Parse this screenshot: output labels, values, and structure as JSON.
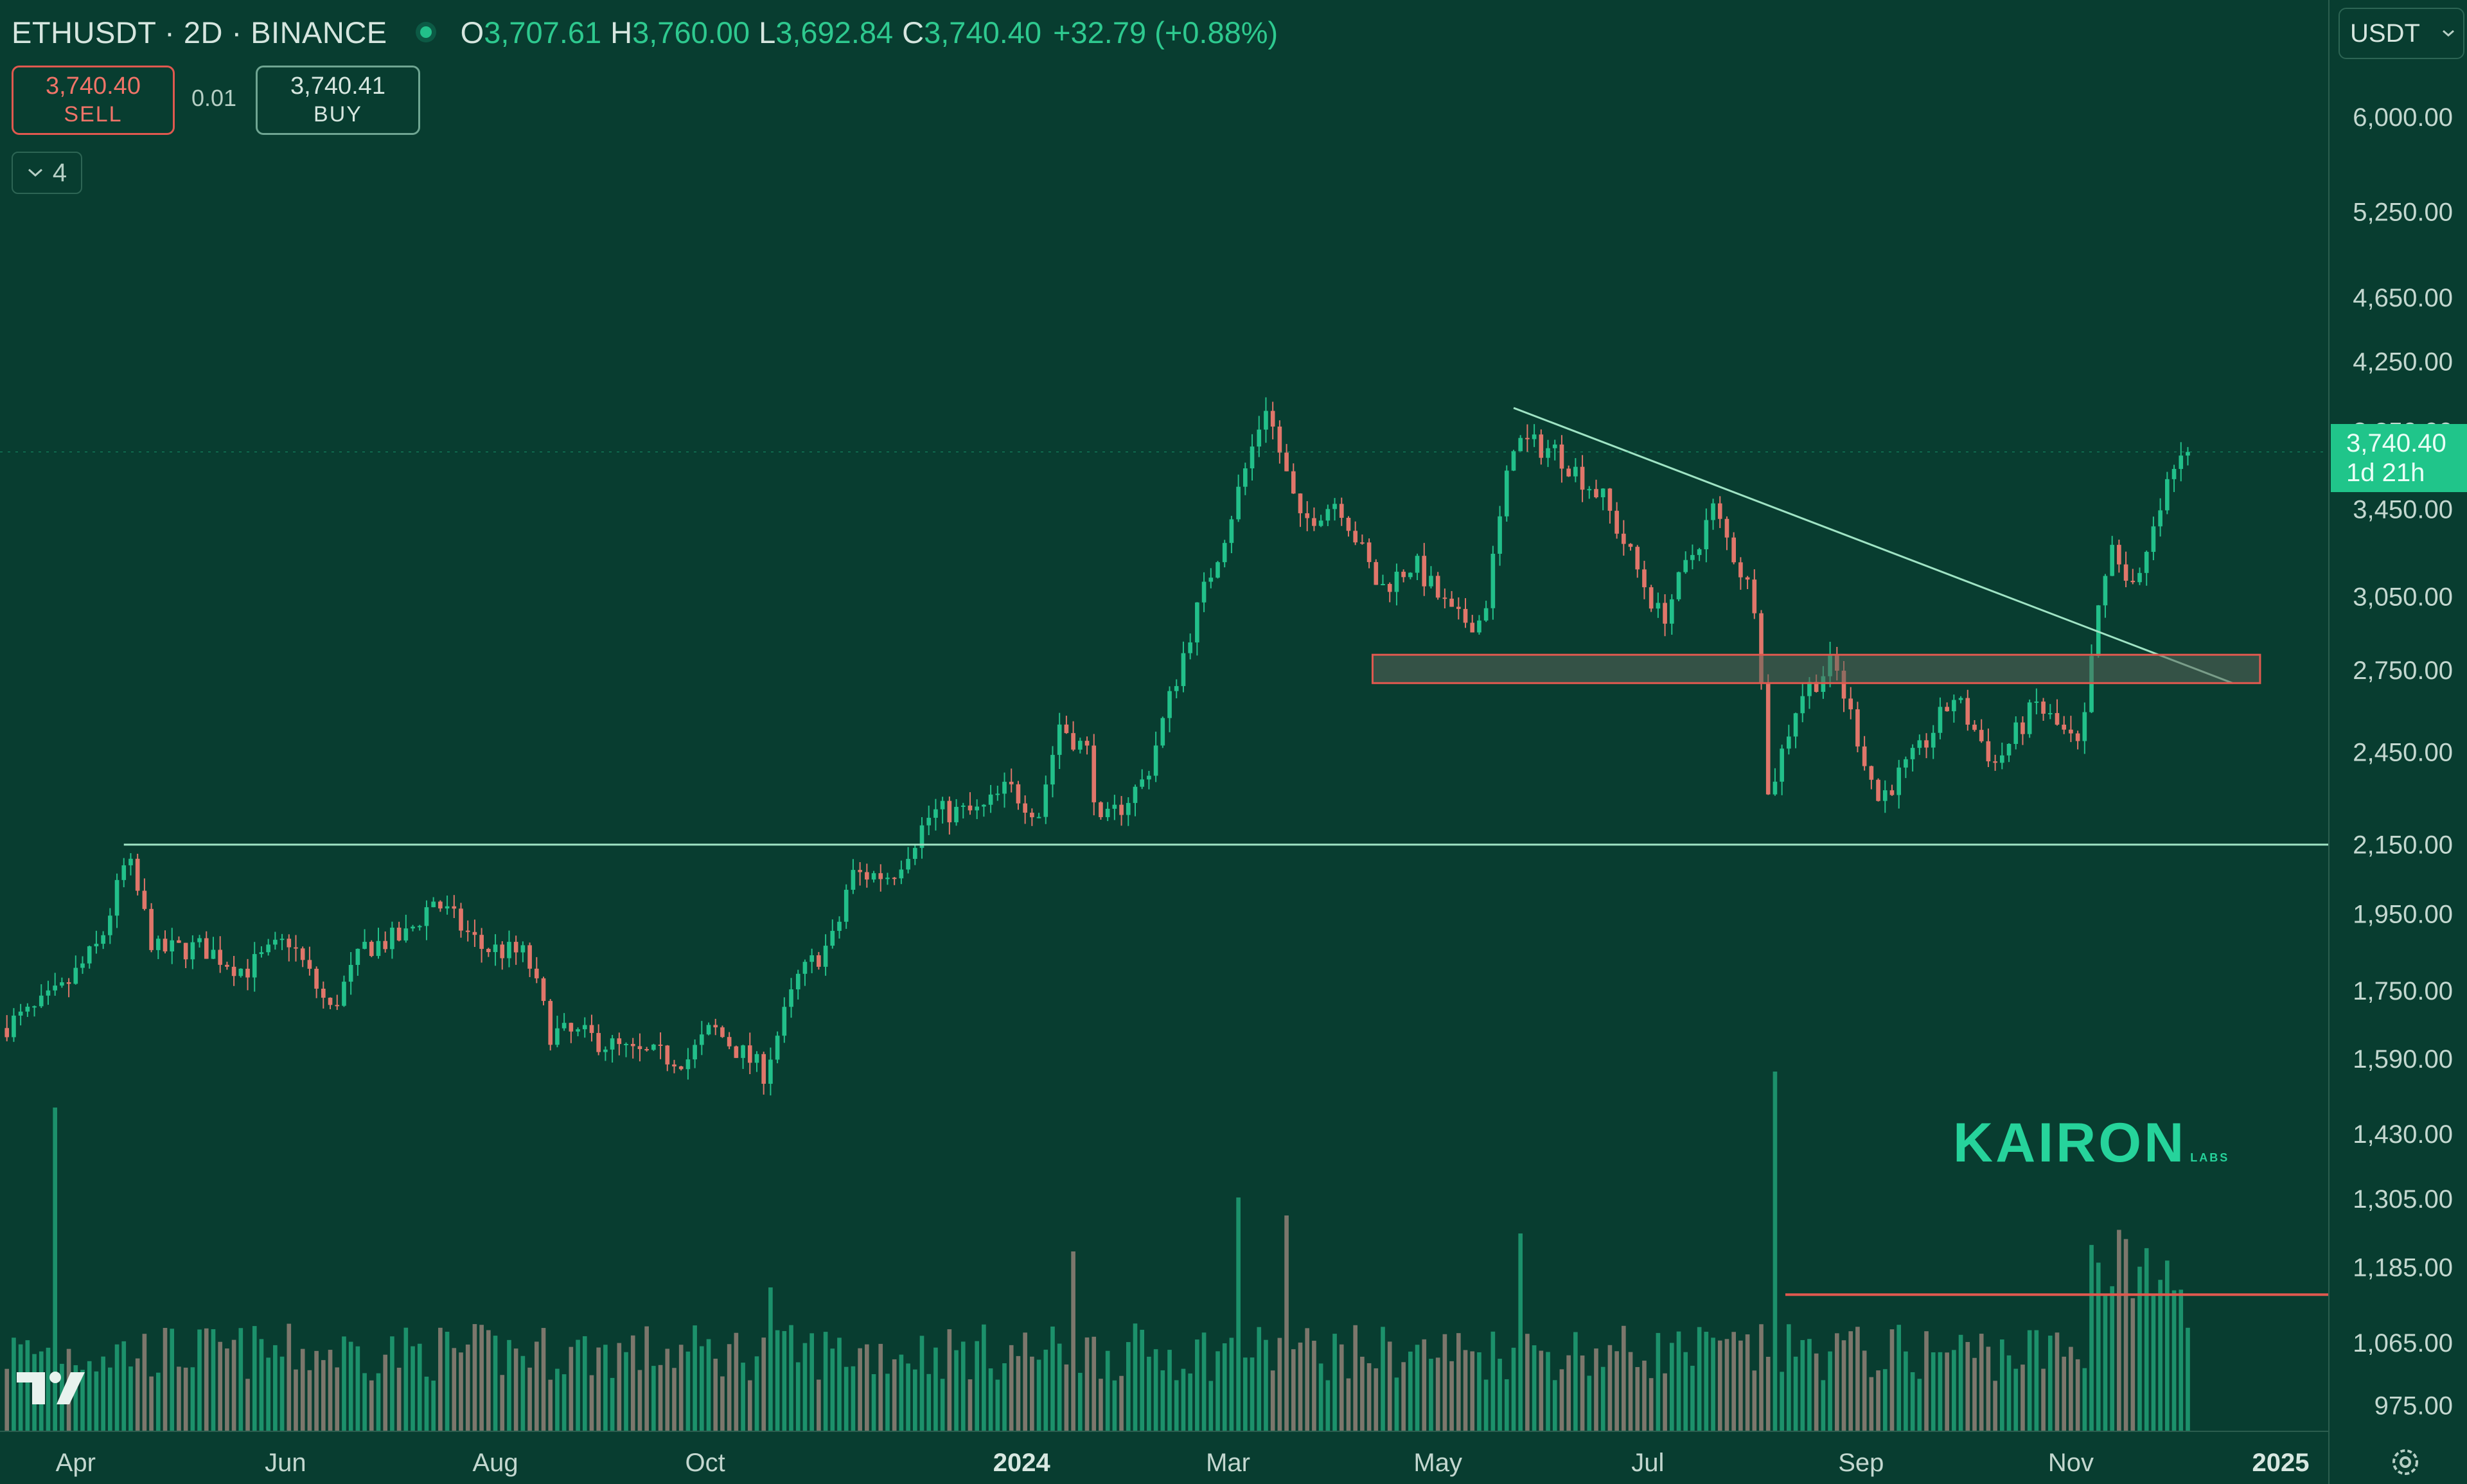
{
  "header": {
    "symbol": "ETHUSDT · 2D · BINANCE",
    "open_key": "O",
    "open": "3,707.61",
    "high_key": "H",
    "high": "3,760.00",
    "low_key": "L",
    "low": "3,692.84",
    "close_key": "C",
    "close": "3,740.40",
    "change": "+32.79 (+0.88%)"
  },
  "trade": {
    "sell_price": "3,740.40",
    "sell_label": "SELL",
    "spread": "0.01",
    "buy_price": "3,740.41",
    "buy_label": "BUY"
  },
  "indicators": {
    "count": "4"
  },
  "currency": "USDT",
  "price_tag": {
    "price": "3,740.40",
    "countdown": "1d 21h"
  },
  "logo": {
    "main": "KAIRON",
    "sub": "LABS"
  },
  "colors": {
    "up": "#22c08a",
    "down": "#e0766a",
    "background": "#083d30",
    "support_line": "#9fe3c4",
    "trendline": "#9fe3c4",
    "zone_border": "#e0594f"
  },
  "chart_data": {
    "type": "candlestick",
    "symbol": "ETHUSDT",
    "interval": "2D",
    "exchange": "BINANCE",
    "y_scale": "log",
    "ylim": [
      940,
      6300
    ],
    "y_ticks": [
      "6,000.00",
      "5,250.00",
      "4,650.00",
      "4,250.00",
      "3,850.00",
      "3,450.00",
      "3,050.00",
      "2,750.00",
      "2,450.00",
      "2,150.00",
      "1,950.00",
      "1,750.00",
      "1,590.00",
      "1,430.00",
      "1,305.00",
      "1,185.00",
      "1,065.00",
      "975.00"
    ],
    "x_ticks": [
      "Apr",
      "Jun",
      "Aug",
      "Oct",
      "2024",
      "Mar",
      "May",
      "Jul",
      "Sep",
      "Nov",
      "2025"
    ],
    "xlim": [
      "2023-03-10",
      "2025-01-15"
    ],
    "last_price": 3740.4,
    "price_path": [
      [
        "2023-03-10",
        1660
      ],
      [
        "2023-03-20",
        1700
      ],
      [
        "2023-03-28",
        1750
      ],
      [
        "2023-04-08",
        1870
      ],
      [
        "2023-04-16",
        2110
      ],
      [
        "2023-04-24",
        1850
      ],
      [
        "2023-05-08",
        1860
      ],
      [
        "2023-05-20",
        1800
      ],
      [
        "2023-06-02",
        1880
      ],
      [
        "2023-06-14",
        1700
      ],
      [
        "2023-06-24",
        1860
      ],
      [
        "2023-07-06",
        1890
      ],
      [
        "2023-07-14",
        1990
      ],
      [
        "2023-07-28",
        1860
      ],
      [
        "2023-08-10",
        1840
      ],
      [
        "2023-08-17",
        1650
      ],
      [
        "2023-08-28",
        1640
      ],
      [
        "2023-09-10",
        1600
      ],
      [
        "2023-09-26",
        1590
      ],
      [
        "2023-10-03",
        1660
      ],
      [
        "2023-10-18",
        1560
      ],
      [
        "2023-10-28",
        1780
      ],
      [
        "2023-11-08",
        1890
      ],
      [
        "2023-11-12",
        2060
      ],
      [
        "2023-11-24",
        2060
      ],
      [
        "2023-12-06",
        2250
      ],
      [
        "2023-12-20",
        2250
      ],
      [
        "2023-12-28",
        2330
      ],
      [
        "2024-01-06",
        2250
      ],
      [
        "2024-01-12",
        2550
      ],
      [
        "2024-01-20",
        2450
      ],
      [
        "2024-01-24",
        2200
      ],
      [
        "2024-02-06",
        2360
      ],
      [
        "2024-02-20",
        2950
      ],
      [
        "2024-03-01",
        3380
      ],
      [
        "2024-03-12",
        4000
      ],
      [
        "2024-03-22",
        3380
      ],
      [
        "2024-04-02",
        3500
      ],
      [
        "2024-04-14",
        3080
      ],
      [
        "2024-04-24",
        3200
      ],
      [
        "2024-05-06",
        2950
      ],
      [
        "2024-05-14",
        2950
      ],
      [
        "2024-05-23",
        3800
      ],
      [
        "2024-06-04",
        3750
      ],
      [
        "2024-06-18",
        3500
      ],
      [
        "2024-07-05",
        2950
      ],
      [
        "2024-07-20",
        3450
      ],
      [
        "2024-08-02",
        3000
      ],
      [
        "2024-08-05",
        2300
      ],
      [
        "2024-08-14",
        2650
      ],
      [
        "2024-08-24",
        2780
      ],
      [
        "2024-09-06",
        2290
      ],
      [
        "2024-09-18",
        2450
      ],
      [
        "2024-09-28",
        2650
      ],
      [
        "2024-10-10",
        2410
      ],
      [
        "2024-10-22",
        2620
      ],
      [
        "2024-11-04",
        2450
      ],
      [
        "2024-11-08",
        2900
      ],
      [
        "2024-11-12",
        3300
      ],
      [
        "2024-11-20",
        3070
      ],
      [
        "2024-11-30",
        3620
      ],
      [
        "2024-12-06",
        3740.4
      ]
    ],
    "annotations": {
      "support_line": {
        "price": 2150,
        "from": "2023-04-15",
        "to": "2025-01-15"
      },
      "descending_trendline": {
        "from": [
          "2024-05-23",
          3980
        ],
        "to": [
          "2024-12-18",
          2700
        ]
      },
      "resistance_zone": {
        "from": "2024-04-12",
        "to": "2024-12-26",
        "low": 2700,
        "high": 2810
      },
      "volume_level": {
        "from": "2024-08-10",
        "to": "2025-01-15",
        "volume": 0.38
      }
    },
    "volume_spikes": [
      [
        "2023-03-24",
        0.9
      ],
      [
        "2023-10-17",
        0.4
      ],
      [
        "2024-01-14",
        0.5
      ],
      [
        "2024-03-01",
        0.65
      ],
      [
        "2024-03-15",
        0.6
      ],
      [
        "2024-05-22",
        0.55
      ],
      [
        "2024-08-04",
        1.0
      ],
      [
        "2024-11-12",
        0.56
      ],
      [
        "2024-11-26",
        0.45
      ]
    ]
  }
}
